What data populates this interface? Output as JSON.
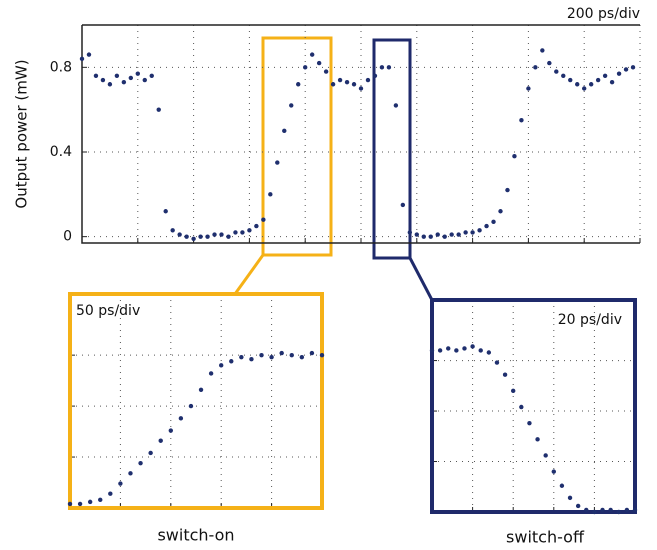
{
  "chart_data": [
    {
      "type": "scatter",
      "annotation": "200 ps/div",
      "y_label": "Output power (mW)",
      "color": "#1f2f6e",
      "grid": true,
      "xlim": [
        0,
        2000
      ],
      "xticks": [
        0,
        200,
        400,
        600,
        800,
        1000,
        1200,
        1400,
        1600,
        1800,
        2000
      ],
      "ylim": [
        -0.03,
        1.0
      ],
      "yticks": [
        0,
        0.4,
        0.8
      ],
      "x": [
        0,
        25,
        50,
        75,
        100,
        125,
        150,
        175,
        200,
        225,
        250,
        275,
        300,
        325,
        350,
        375,
        400,
        425,
        450,
        475,
        500,
        525,
        550,
        575,
        600,
        625,
        650,
        675,
        700,
        725,
        750,
        775,
        800,
        825,
        850,
        875,
        900,
        925,
        950,
        975,
        1000,
        1025,
        1050,
        1075,
        1100,
        1125,
        1150,
        1175,
        1200,
        1225,
        1250,
        1275,
        1300,
        1325,
        1350,
        1375,
        1400,
        1425,
        1450,
        1475,
        1500,
        1525,
        1550,
        1575,
        1600,
        1625,
        1650,
        1675,
        1700,
        1725,
        1750,
        1775,
        1800,
        1825,
        1850,
        1875,
        1900,
        1925,
        1950,
        1975
      ],
      "values": [
        0.84,
        0.86,
        0.76,
        0.74,
        0.72,
        0.76,
        0.73,
        0.75,
        0.77,
        0.74,
        0.76,
        0.6,
        0.12,
        0.03,
        0.01,
        0.0,
        -0.01,
        0.0,
        0.0,
        0.01,
        0.01,
        0.0,
        0.02,
        0.02,
        0.03,
        0.05,
        0.08,
        0.2,
        0.35,
        0.5,
        0.62,
        0.72,
        0.8,
        0.86,
        0.82,
        0.78,
        0.72,
        0.74,
        0.73,
        0.72,
        0.7,
        0.74,
        0.76,
        0.8,
        0.8,
        0.62,
        0.15,
        0.02,
        0.01,
        0.0,
        0.0,
        0.01,
        0.0,
        0.01,
        0.01,
        0.02,
        0.02,
        0.03,
        0.05,
        0.07,
        0.12,
        0.22,
        0.38,
        0.55,
        0.7,
        0.8,
        0.88,
        0.82,
        0.78,
        0.76,
        0.74,
        0.72,
        0.7,
        0.72,
        0.74,
        0.76,
        0.73,
        0.77,
        0.79,
        0.8
      ]
    },
    {
      "type": "scatter",
      "annotation": "50 ps/div",
      "label": "switch-on",
      "color": "#1f2f6e",
      "frame_color": "#f5b117",
      "grid": true,
      "xlim": [
        0,
        250
      ],
      "xticks": [
        0,
        50,
        100,
        150,
        200,
        250
      ],
      "ylim": [
        0,
        1.05
      ],
      "yticks": [
        0.25,
        0.5,
        0.75
      ],
      "x": [
        0,
        10,
        20,
        30,
        40,
        50,
        60,
        70,
        80,
        90,
        100,
        110,
        120,
        130,
        140,
        150,
        160,
        170,
        180,
        190,
        200,
        210,
        220,
        230,
        240,
        250
      ],
      "values": [
        0.02,
        0.02,
        0.03,
        0.04,
        0.07,
        0.12,
        0.17,
        0.22,
        0.27,
        0.33,
        0.38,
        0.44,
        0.5,
        0.58,
        0.66,
        0.7,
        0.72,
        0.74,
        0.73,
        0.75,
        0.74,
        0.76,
        0.75,
        0.74,
        0.76,
        0.75
      ]
    },
    {
      "type": "scatter",
      "annotation": "20 ps/div",
      "label": "switch-off",
      "color": "#1f2f6e",
      "frame_color": "#1f2a6b",
      "grid": true,
      "xlim": [
        0,
        100
      ],
      "xticks": [
        0,
        20,
        40,
        60,
        80,
        100
      ],
      "ylim": [
        0,
        1.05
      ],
      "yticks": [
        0.25,
        0.5,
        0.75
      ],
      "x": [
        0,
        4,
        8,
        12,
        16,
        20,
        24,
        28,
        32,
        36,
        40,
        44,
        48,
        52,
        56,
        60,
        64,
        68,
        72,
        76,
        80,
        84,
        88,
        92,
        96,
        100
      ],
      "values": [
        0.8,
        0.8,
        0.81,
        0.8,
        0.81,
        0.82,
        0.8,
        0.79,
        0.74,
        0.68,
        0.6,
        0.52,
        0.44,
        0.36,
        0.28,
        0.2,
        0.13,
        0.07,
        0.03,
        0.01,
        0.0,
        0.01,
        0.01,
        0.0,
        0.01,
        0.01
      ]
    }
  ]
}
